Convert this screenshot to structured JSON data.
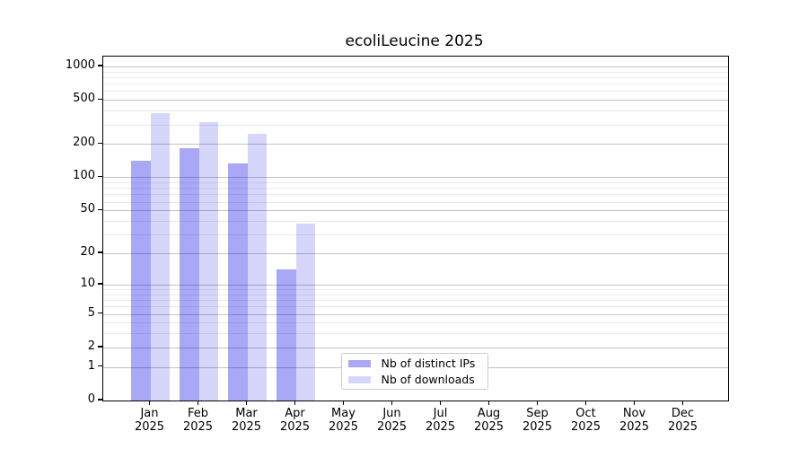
{
  "title": "ecoliLeucine 2025",
  "colors": {
    "distinct_ips": "rgba(0,0,230,0.34)",
    "downloads": "rgba(0,0,230,0.16)",
    "major_grid": "#c3c3c3",
    "minor_grid": "#eaeaea",
    "spine": "#000000"
  },
  "legend": {
    "items": [
      {
        "label": "Nb of distinct IPs",
        "key": "distinct_ips"
      },
      {
        "label": "Nb of downloads",
        "key": "downloads"
      }
    ]
  },
  "x_axis": {
    "months": [
      "Jan",
      "Feb",
      "Mar",
      "Apr",
      "May",
      "Jun",
      "Jul",
      "Aug",
      "Sep",
      "Oct",
      "Nov",
      "Dec"
    ],
    "year": "2025"
  },
  "y_axis": {
    "tick_labels": [
      "0",
      "1",
      "2",
      "5",
      "10",
      "20",
      "50",
      "100",
      "200",
      "500",
      "1000"
    ]
  },
  "chart_data": {
    "type": "bar",
    "title": "ecoliLeucine 2025",
    "categories": [
      "Jan 2025",
      "Feb 2025",
      "Mar 2025",
      "Apr 2025",
      "May 2025",
      "Jun 2025",
      "Jul 2025",
      "Aug 2025",
      "Sep 2025",
      "Oct 2025",
      "Nov 2025",
      "Dec 2025"
    ],
    "series": [
      {
        "name": "Nb of distinct IPs",
        "key": "distinct_ips",
        "values": [
          140,
          182,
          133,
          14,
          null,
          null,
          null,
          null,
          null,
          null,
          null,
          null
        ]
      },
      {
        "name": "Nb of downloads",
        "key": "downloads",
        "values": [
          380,
          316,
          249,
          38,
          null,
          null,
          null,
          null,
          null,
          null,
          null,
          null
        ]
      }
    ],
    "ylabel": "",
    "xlabel": "",
    "yscale": "log10(1+v) (symlog-like, linear at 0)",
    "y_ticks": [
      0,
      1,
      2,
      5,
      10,
      20,
      50,
      100,
      200,
      500,
      1000
    ],
    "y_minor_ticks": [
      3,
      4,
      6,
      7,
      8,
      9,
      30,
      40,
      60,
      70,
      80,
      90,
      300,
      400,
      600,
      700,
      800,
      900
    ],
    "ylim": [
      0,
      1253
    ],
    "grid": "both",
    "legend_position": "inside bottom-center"
  }
}
